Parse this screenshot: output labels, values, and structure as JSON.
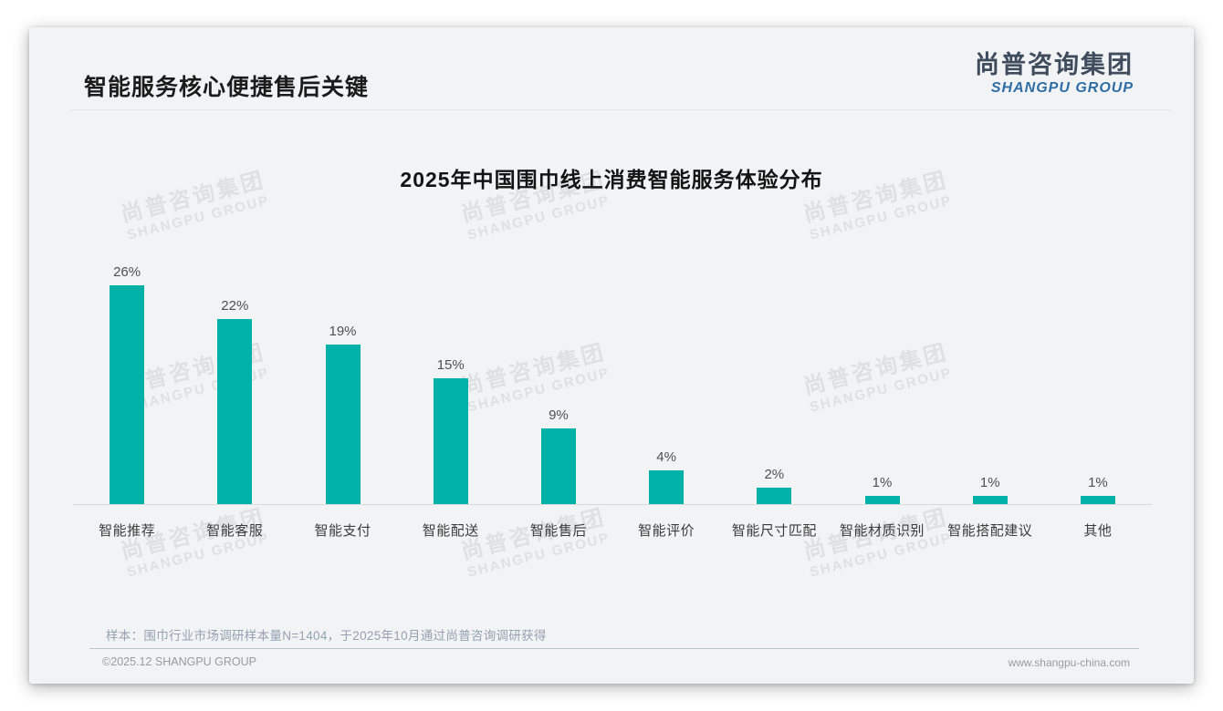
{
  "slide": {
    "header": {
      "title": "智能服务核心便捷售后关键"
    },
    "logo": {
      "cn": "尚普咨询集团",
      "en": "SHANGPU GROUP"
    },
    "watermark": {
      "cn": "尚普咨询集团",
      "en": "SHANGPU GROUP"
    },
    "footnote": "样本：围巾行业市场调研样本量N=1404，于2025年10月通过尚普咨询调研获得",
    "footer": {
      "left": "©2025.12 SHANGPU GROUP",
      "right": "www.shangpu-china.com"
    }
  },
  "chart_data": {
    "type": "bar",
    "title": "2025年中国围巾线上消费智能服务体验分布",
    "categories": [
      "智能推荐",
      "智能客服",
      "智能支付",
      "智能配送",
      "智能售后",
      "智能评价",
      "智能尺寸匹配",
      "智能材质识别",
      "智能搭配建议",
      "其他"
    ],
    "values": [
      26,
      22,
      19,
      15,
      9,
      4,
      2,
      1,
      1,
      1
    ],
    "value_labels": [
      "26%",
      "22%",
      "19%",
      "15%",
      "9%",
      "4%",
      "2%",
      "1%",
      "1%",
      "1%"
    ],
    "unit": "%",
    "ylim": [
      0,
      28
    ],
    "grid": false,
    "legend": false,
    "bar_color": "#00b1a7",
    "value_label_color": "#4f4f4f",
    "axis_line_color": "#d8d9da"
  },
  "colors": {
    "slide_background": "#f2f3f4",
    "accent_teal": "#00b1a7",
    "logo_blue": "#2e6da6",
    "logo_dark": "#3e4c5e"
  }
}
